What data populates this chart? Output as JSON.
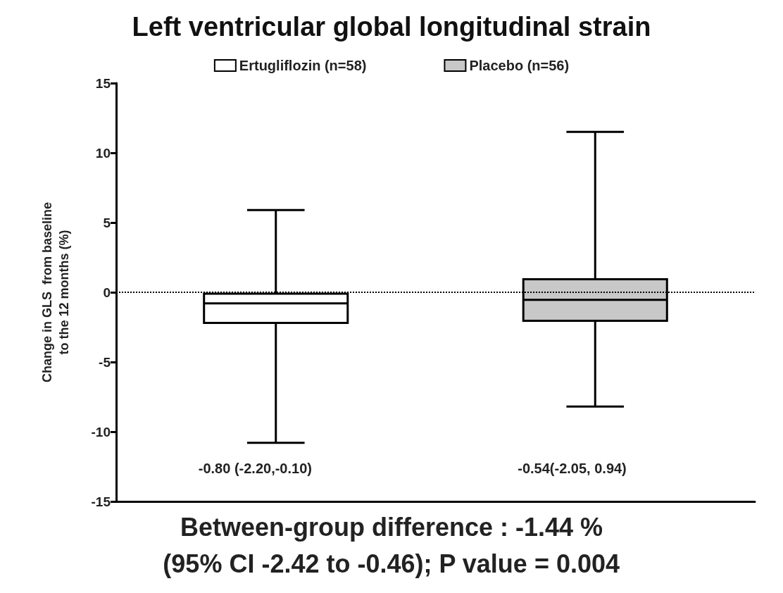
{
  "chart_data": {
    "type": "box",
    "title": "Left ventricular global longitudinal strain",
    "ylabel": "Change in GLS  from baseline\nto the 12 months (%)",
    "categories": [
      null,
      null
    ],
    "series": [
      {
        "name": "Ertugliflozin (n=58)",
        "color": "#ffffff",
        "boxes": [
          {
            "low": -10.8,
            "q1": -2.2,
            "median": -0.8,
            "q3": -0.1,
            "high": 5.9
          },
          null
        ]
      },
      {
        "name": "Placebo (n=56)",
        "color": "#c8c8c8",
        "boxes": [
          null,
          {
            "low": -8.2,
            "q1": -2.05,
            "median": -0.54,
            "q3": 0.94,
            "high": 11.5
          }
        ]
      }
    ],
    "ylim": [
      -15,
      15
    ],
    "yticks": [
      -15,
      -10,
      -5,
      0,
      5,
      10,
      15
    ],
    "ref_lines": [
      {
        "axis": "y",
        "value": 0,
        "line_style": "dotted"
      }
    ],
    "annotations": [
      "-0.80 (-2.20,-0.10)",
      "-0.54(-2.05, 0.94)",
      "Between-group difference : -1.44 %",
      "(95% CI -2.42 to -0.46); P value = 0.004"
    ],
    "legend": "top",
    "grid": false
  }
}
